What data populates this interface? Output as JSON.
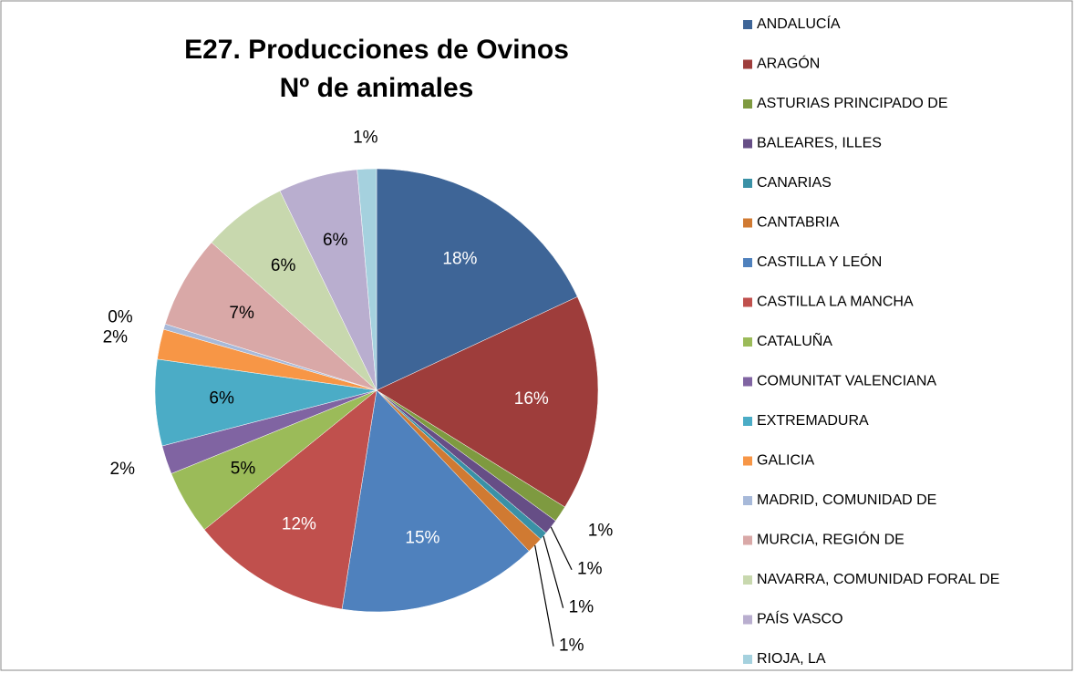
{
  "chart_data": {
    "type": "pie",
    "title": [
      "E27. Producciones de Ovinos",
      "Nº de animales"
    ],
    "categories": [
      "ANDALUCÍA",
      "ARAGÓN",
      "ASTURIAS PRINCIPADO DE",
      "BALEARES, ILLES",
      "CANARIAS",
      "CANTABRIA",
      "CASTILLA Y LEÓN",
      "CASTILLA LA MANCHA",
      "CATALUÑA",
      "COMUNITAT VALENCIANA",
      "EXTREMADURA",
      "GALICIA",
      "MADRID, COMUNIDAD DE",
      "MURCIA, REGIÓN DE",
      "NAVARRA, COMUNIDAD FORAL DE",
      "PAÍS VASCO",
      "RIOJA, LA"
    ],
    "values": [
      18.1,
      15.8,
      1.2,
      1.1,
      0.6,
      1.2,
      14.6,
      11.7,
      4.7,
      2.1,
      6.3,
      2.2,
      0.4,
      6.8,
      6.2,
      5.8,
      1.4
    ],
    "value_labels": [
      "18%",
      "16%",
      "1%",
      "1%",
      "1%",
      "1%",
      "15%",
      "12%",
      "5%",
      "2%",
      "6%",
      "2%",
      "0%",
      "7%",
      "6%",
      "6%",
      "1%"
    ],
    "colors": [
      "#3E6597",
      "#9E3D3B",
      "#7E9A40",
      "#664E86",
      "#3A91A6",
      "#D07A32",
      "#4F81BD",
      "#C0504D",
      "#9BBB59",
      "#8064A2",
      "#4BACC6",
      "#F79646",
      "#A7B9D9",
      "#D9A8A7",
      "#C8D8AE",
      "#B9AECF",
      "#A5D1DE"
    ],
    "legend": "right"
  }
}
